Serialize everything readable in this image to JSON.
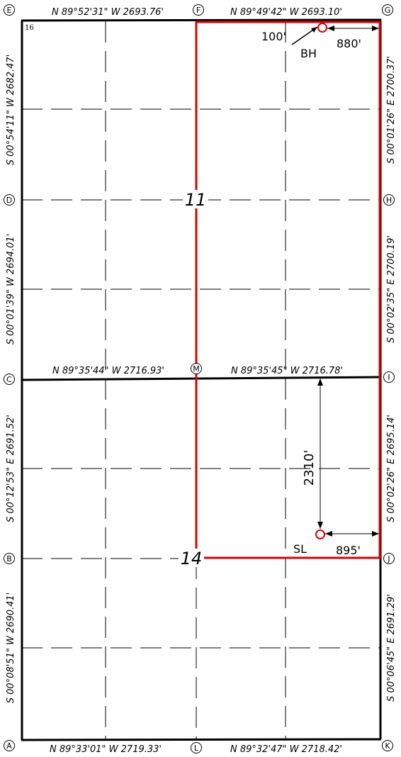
{
  "map": {
    "corner_section_number": "16",
    "sections": {
      "upper": "11",
      "lower": "14"
    },
    "corners": [
      "A",
      "B",
      "C",
      "D",
      "E",
      "F",
      "G",
      "H",
      "I",
      "J",
      "K",
      "L",
      "M"
    ],
    "bearings": {
      "top_left": "N 89°52'31\" W 2693.76'",
      "top_right": "N 89°49'42\" W 2693.10'",
      "mid_left": "N 89°35'44\" W 2716.93'",
      "mid_right": "N 89°35'45\" W 2716.78'",
      "bottom_left": "N 89°33'01\" W 2719.33'",
      "bottom_right": "N 89°32'47\" W 2718.42'",
      "left_upper_top": "S 00°54'11\" W 2682.47'",
      "left_upper_bottom": "S 00°01'39\" W 2694.01'",
      "left_lower_top": "S 00°12'53\" E 2691.52'",
      "left_lower_bottom": "S 00°08'51\" W 2690.41'",
      "right_upper_top": "S 00°01'26\" E 2700.37'",
      "right_upper_bottom": "S 00°02'35\" E 2700.19'",
      "right_lower_top": "S 00°02'26\" E 2695.14'",
      "right_lower_bottom": "S 00°06'45\" E 2691.29'"
    },
    "bottom_hole": {
      "label": "BH",
      "offset_north": "100'",
      "offset_east": "880'"
    },
    "surface_location": {
      "label": "SL",
      "offset_north": "2310'",
      "offset_east": "895'"
    },
    "colors": {
      "boundary": "#e00000",
      "linework": "#000000",
      "background": "#ffffff"
    }
  }
}
